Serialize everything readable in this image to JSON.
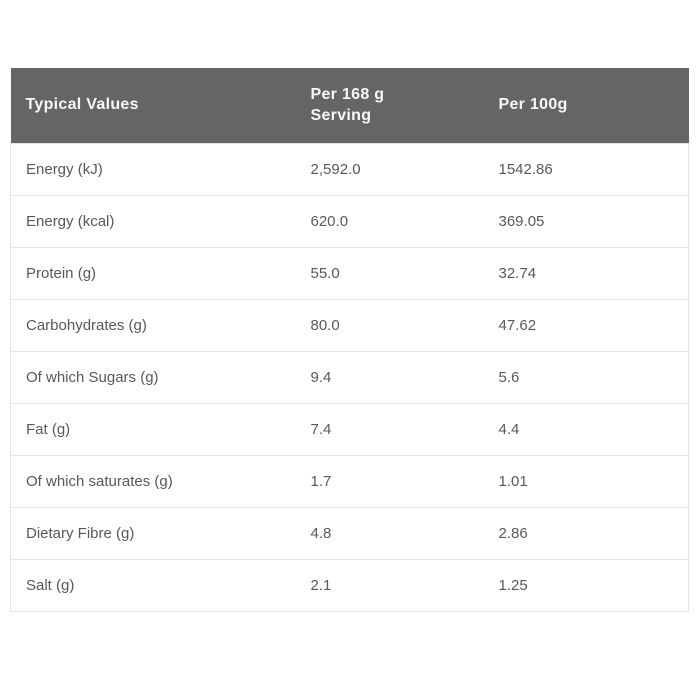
{
  "table": {
    "headers": {
      "col1": "Typical Values",
      "col2": "Per 168 g Serving",
      "col3": "Per 100g"
    },
    "rows": [
      {
        "label": "Energy (kJ)",
        "per_serving": "2,592.0",
        "per_100g": "1542.86"
      },
      {
        "label": "Energy (kcal)",
        "per_serving": "620.0",
        "per_100g": "369.05"
      },
      {
        "label": "Protein (g)",
        "per_serving": "55.0",
        "per_100g": "32.74"
      },
      {
        "label": "Carbohydrates (g)",
        "per_serving": "80.0",
        "per_100g": "47.62"
      },
      {
        "label": "Of which Sugars (g)",
        "per_serving": "9.4",
        "per_100g": "5.6"
      },
      {
        "label": "Fat (g)",
        "per_serving": "7.4",
        "per_100g": "4.4"
      },
      {
        "label": "Of which saturates (g)",
        "per_serving": "1.7",
        "per_100g": "1.01"
      },
      {
        "label": "Dietary Fibre (g)",
        "per_serving": "4.8",
        "per_100g": "2.86"
      },
      {
        "label": "Salt (g)",
        "per_serving": "2.1",
        "per_100g": "1.25"
      }
    ]
  },
  "colors": {
    "header_bg": "#656565",
    "header_text": "#f7f7f7",
    "body_text": "#55595c",
    "row_border": "#e4e4e4",
    "page_bg": "#ffffff"
  }
}
